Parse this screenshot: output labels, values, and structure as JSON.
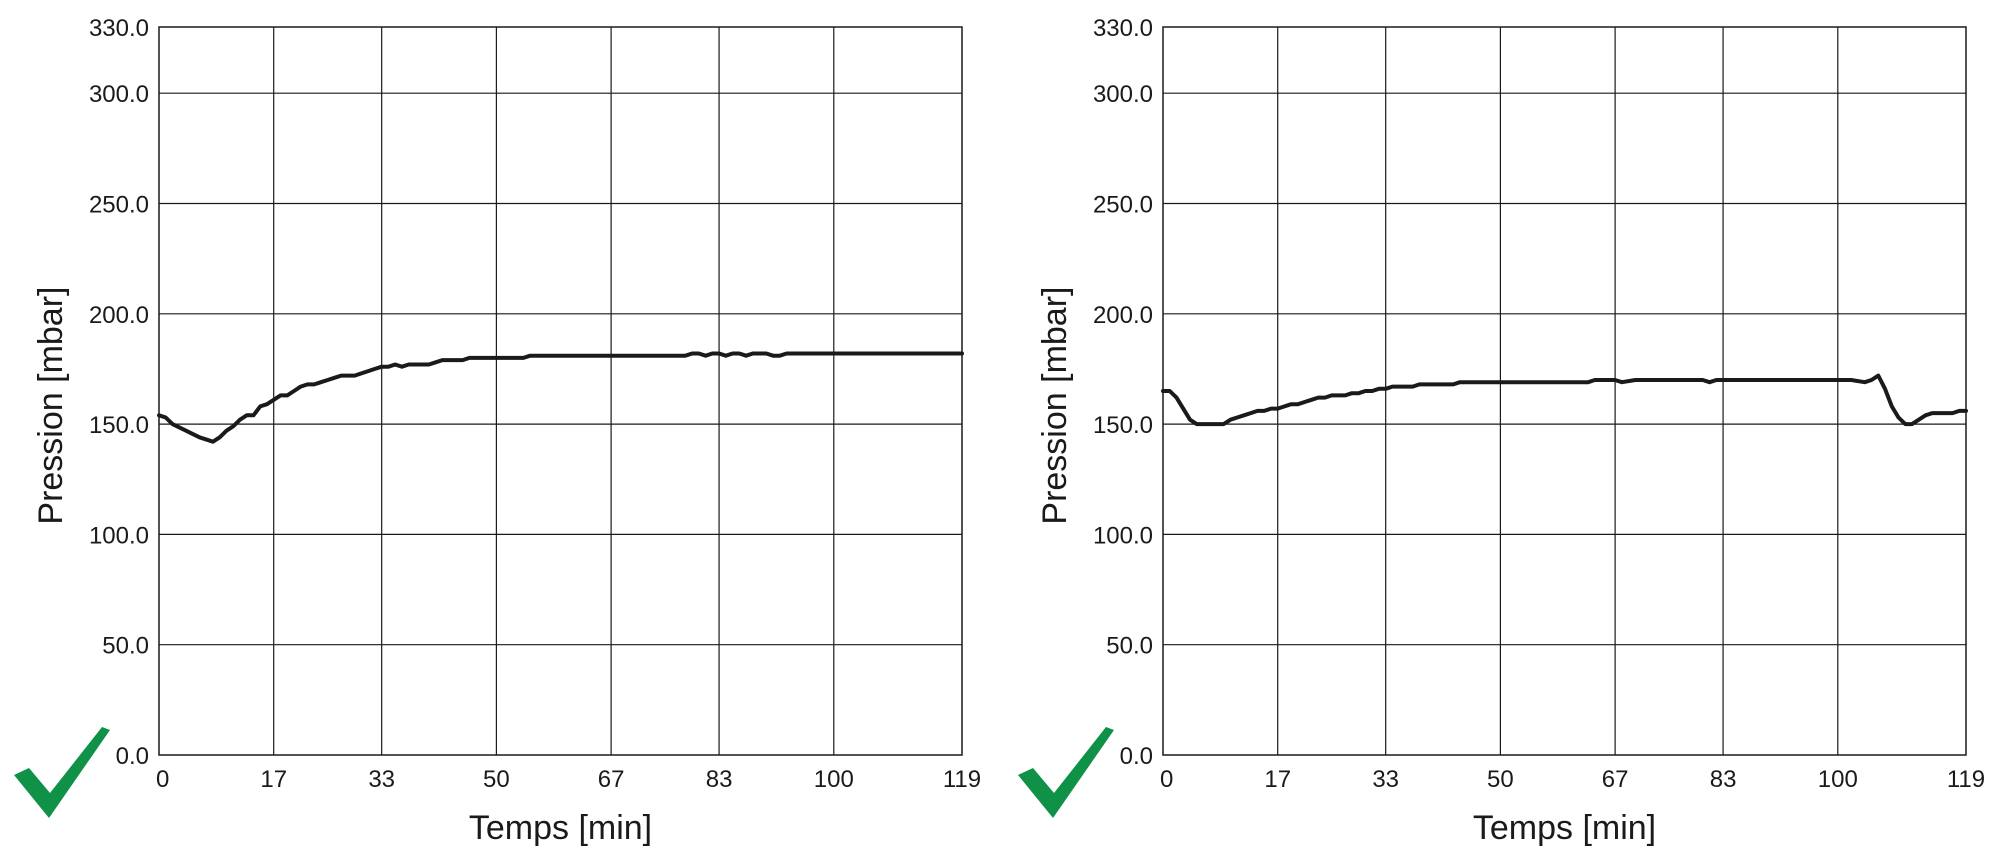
{
  "colors": {
    "line": "#1a1a1a",
    "grid": "#1a1a1a",
    "check": "#0f9147"
  },
  "chart_data": [
    {
      "type": "line",
      "title": "",
      "xlabel": "Temps [min]",
      "ylabel": "Pression [mbar]",
      "x_ticks": [
        "0",
        "17",
        "33",
        "50",
        "67",
        "83",
        "100",
        "119"
      ],
      "y_ticks": [
        "0.0",
        "50.0",
        "100.0",
        "150.0",
        "200.0",
        "250.0",
        "300.0",
        "330.0"
      ],
      "xlim": [
        0,
        119
      ],
      "ylim": [
        0,
        330
      ],
      "grid": true,
      "series": [
        {
          "x": [
            0,
            1,
            2,
            4,
            6,
            8,
            9,
            10,
            11,
            12,
            13,
            14,
            15,
            16,
            17,
            18,
            19,
            20,
            21,
            22,
            23,
            24,
            25,
            26,
            27,
            28,
            29,
            30,
            31,
            32,
            33,
            34,
            35,
            36,
            37,
            38,
            39,
            40,
            41,
            42,
            43,
            44,
            45,
            46,
            47,
            48,
            49,
            50,
            51,
            52,
            53,
            54,
            55,
            60,
            64,
            65,
            78,
            79,
            80,
            81,
            82,
            83,
            84,
            85,
            86,
            87,
            88,
            89,
            90,
            91,
            92,
            93,
            94,
            95,
            96,
            97,
            98,
            99,
            100,
            102,
            105,
            108,
            112,
            113,
            114,
            115,
            116,
            117,
            118,
            119
          ],
          "y": [
            154,
            153,
            150,
            147,
            144,
            142,
            144,
            147,
            149,
            152,
            154,
            154,
            158,
            159,
            161,
            163,
            163,
            165,
            167,
            168,
            168,
            169,
            170,
            171,
            172,
            172,
            172,
            173,
            174,
            175,
            176,
            176,
            177,
            176,
            177,
            177,
            177,
            177,
            178,
            179,
            179,
            179,
            179,
            180,
            180,
            180,
            180,
            180,
            180,
            180,
            180,
            180,
            181,
            181,
            181,
            181,
            181,
            182,
            182,
            181,
            182,
            182,
            181,
            182,
            182,
            181,
            182,
            182,
            182,
            181,
            181,
            182,
            182,
            182,
            182,
            182,
            182,
            182,
            182,
            182,
            182,
            182,
            182,
            182,
            182,
            182,
            182,
            182,
            182,
            182
          ]
        }
      ]
    },
    {
      "type": "line",
      "title": "",
      "xlabel": "Temps [min]",
      "ylabel": "Pression [mbar]",
      "x_ticks": [
        "0",
        "17",
        "33",
        "50",
        "67",
        "83",
        "100",
        "119"
      ],
      "y_ticks": [
        "0.0",
        "50.0",
        "100.0",
        "150.0",
        "200.0",
        "250.0",
        "300.0",
        "330.0"
      ],
      "xlim": [
        0,
        119
      ],
      "ylim": [
        0,
        330
      ],
      "grid": true,
      "series": [
        {
          "x": [
            0,
            1,
            2,
            3,
            4,
            5,
            6,
            7,
            8,
            9,
            10,
            11,
            12,
            13,
            14,
            15,
            16,
            17,
            18,
            19,
            20,
            21,
            22,
            23,
            24,
            25,
            26,
            27,
            28,
            29,
            30,
            31,
            32,
            33,
            34,
            35,
            36,
            37,
            38,
            39,
            40,
            41,
            42,
            43,
            44,
            45,
            50,
            55,
            60,
            63,
            64,
            65,
            66,
            67,
            68,
            70,
            75,
            80,
            81,
            82,
            83,
            84,
            85,
            90,
            95,
            100,
            102,
            104,
            105,
            106,
            107,
            108,
            109,
            110,
            111,
            112,
            113,
            114,
            115,
            116,
            117,
            118,
            119
          ],
          "y": [
            165,
            165,
            162,
            157,
            152,
            150,
            150,
            150,
            150,
            150,
            152,
            153,
            154,
            155,
            156,
            156,
            157,
            157,
            158,
            159,
            159,
            160,
            161,
            162,
            162,
            163,
            163,
            163,
            164,
            164,
            165,
            165,
            166,
            166,
            167,
            167,
            167,
            167,
            168,
            168,
            168,
            168,
            168,
            168,
            169,
            169,
            169,
            169,
            169,
            169,
            170,
            170,
            170,
            170,
            169,
            170,
            170,
            170,
            169,
            170,
            170,
            170,
            170,
            170,
            170,
            170,
            170,
            169,
            170,
            172,
            166,
            158,
            153,
            150,
            150,
            152,
            154,
            155,
            155,
            155,
            155,
            156,
            156
          ]
        }
      ]
    }
  ]
}
